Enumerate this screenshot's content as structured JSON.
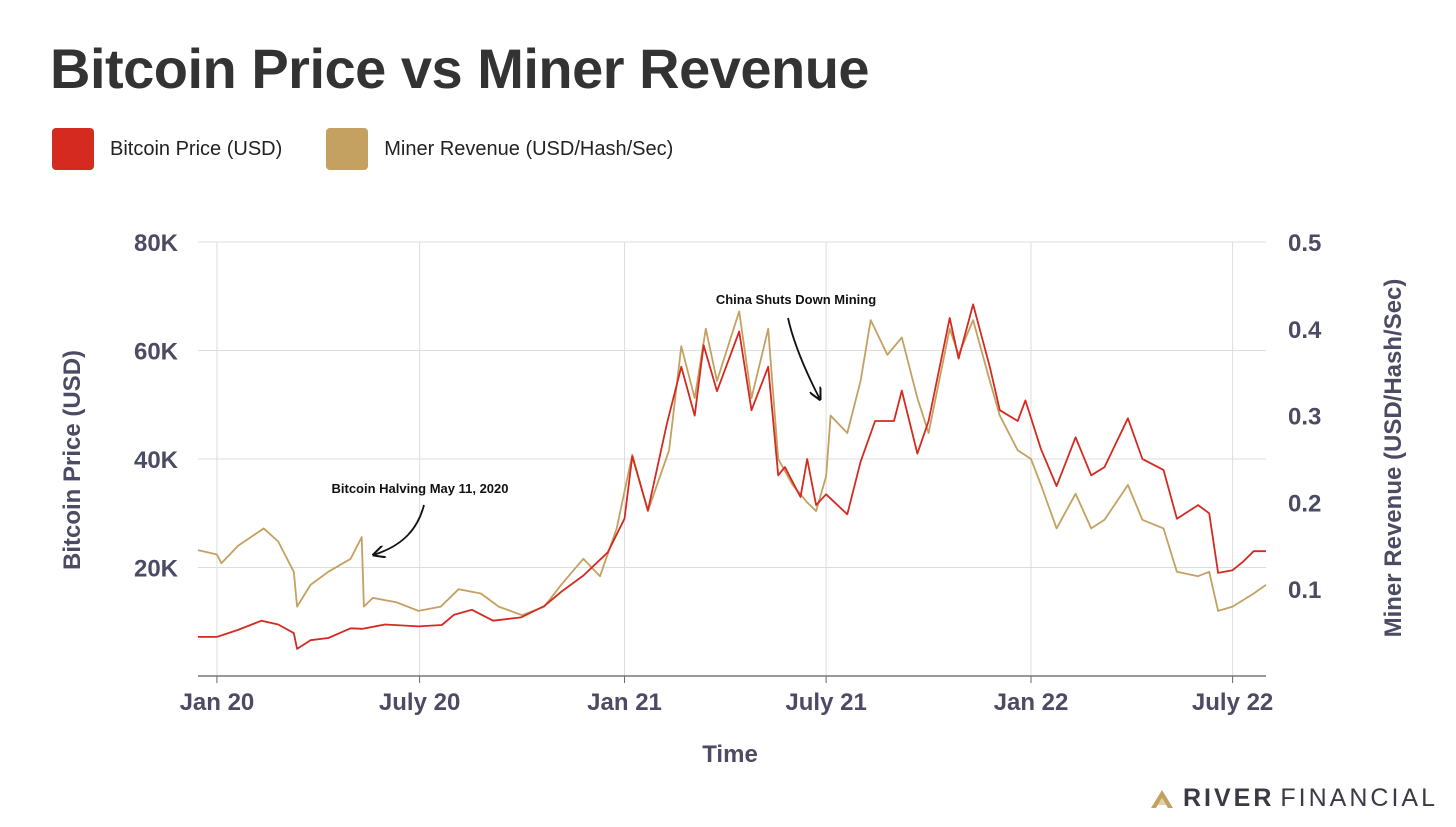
{
  "page": {
    "title": "Bitcoin Price vs Miner Revenue",
    "brand": {
      "name_bold": "RIVER",
      "name_light": "FINANCIAL",
      "logo_icon": "river-mountain-logo-icon"
    }
  },
  "colors": {
    "price": "#d42a20",
    "revenue": "#c4a061",
    "axis_text": "#4b4b63",
    "grid": "#dddddd"
  },
  "legend": [
    {
      "label": "Bitcoin Price (USD)",
      "color": "#d42a20"
    },
    {
      "label": "Miner Revenue (USD/Hash/Sec)",
      "color": "#c4a061"
    }
  ],
  "chart_data": {
    "type": "line",
    "title": "Bitcoin Price vs Miner Revenue",
    "xlabel": "Time",
    "ylabel_left": "Bitcoin Price (USD)",
    "ylabel_right": "Miner Revenue (USD/Hash/Sec)",
    "x_range": [
      "2019-12-15",
      "2022-07-31"
    ],
    "x_ticks": [
      {
        "date": "2020-01-01",
        "label": "Jan 20"
      },
      {
        "date": "2020-07-01",
        "label": "July 20"
      },
      {
        "date": "2021-01-01",
        "label": "Jan 21"
      },
      {
        "date": "2021-07-01",
        "label": "July 21"
      },
      {
        "date": "2022-01-01",
        "label": "Jan 22"
      },
      {
        "date": "2022-07-01",
        "label": "July 22"
      }
    ],
    "ylim_left": [
      0,
      80000
    ],
    "y_ticks_left": [
      {
        "value": 20000,
        "label": "20K"
      },
      {
        "value": 40000,
        "label": "40K"
      },
      {
        "value": 60000,
        "label": "60K"
      },
      {
        "value": 80000,
        "label": "80K"
      }
    ],
    "ylim_right": [
      0,
      0.5
    ],
    "y_ticks_right": [
      {
        "value": 0.1,
        "label": "0.1"
      },
      {
        "value": 0.2,
        "label": "0.2"
      },
      {
        "value": 0.3,
        "label": "0.3"
      },
      {
        "value": 0.4,
        "label": "0.4"
      },
      {
        "value": 0.5,
        "label": "0.5"
      }
    ],
    "grid": true,
    "legend_position": "top-left",
    "series": [
      {
        "name": "Bitcoin Price (USD)",
        "axis": "left",
        "color": "#d42a20",
        "points": [
          [
            "2019-12-15",
            7200
          ],
          [
            "2020-01-01",
            7200
          ],
          [
            "2020-01-20",
            8500
          ],
          [
            "2020-02-10",
            10200
          ],
          [
            "2020-02-25",
            9500
          ],
          [
            "2020-03-10",
            7900
          ],
          [
            "2020-03-13",
            5000
          ],
          [
            "2020-03-25",
            6600
          ],
          [
            "2020-04-10",
            7000
          ],
          [
            "2020-04-30",
            8800
          ],
          [
            "2020-05-11",
            8700
          ],
          [
            "2020-05-31",
            9500
          ],
          [
            "2020-06-30",
            9150
          ],
          [
            "2020-07-21",
            9400
          ],
          [
            "2020-08-01",
            11300
          ],
          [
            "2020-08-17",
            12200
          ],
          [
            "2020-09-05",
            10200
          ],
          [
            "2020-09-30",
            10800
          ],
          [
            "2020-10-21",
            12900
          ],
          [
            "2020-11-05",
            15500
          ],
          [
            "2020-11-25",
            18500
          ],
          [
            "2020-12-17",
            22800
          ],
          [
            "2021-01-01",
            29000
          ],
          [
            "2021-01-08",
            40500
          ],
          [
            "2021-01-22",
            30500
          ],
          [
            "2021-02-08",
            46500
          ],
          [
            "2021-02-21",
            57000
          ],
          [
            "2021-03-05",
            48000
          ],
          [
            "2021-03-13",
            61000
          ],
          [
            "2021-03-25",
            52500
          ],
          [
            "2021-04-14",
            63500
          ],
          [
            "2021-04-25",
            49000
          ],
          [
            "2021-05-10",
            57000
          ],
          [
            "2021-05-19",
            37000
          ],
          [
            "2021-05-25",
            38500
          ],
          [
            "2021-06-08",
            33000
          ],
          [
            "2021-06-14",
            40000
          ],
          [
            "2021-06-22",
            31500
          ],
          [
            "2021-07-01",
            33500
          ],
          [
            "2021-07-20",
            29800
          ],
          [
            "2021-08-01",
            39500
          ],
          [
            "2021-08-14",
            47000
          ],
          [
            "2021-08-31",
            47000
          ],
          [
            "2021-09-07",
            52600
          ],
          [
            "2021-09-21",
            41000
          ],
          [
            "2021-10-01",
            47000
          ],
          [
            "2021-10-20",
            66000
          ],
          [
            "2021-10-28",
            58500
          ],
          [
            "2021-11-10",
            68500
          ],
          [
            "2021-11-25",
            57000
          ],
          [
            "2021-12-04",
            49000
          ],
          [
            "2021-12-20",
            47000
          ],
          [
            "2021-12-27",
            50800
          ],
          [
            "2022-01-10",
            41800
          ],
          [
            "2022-01-24",
            35000
          ],
          [
            "2022-02-10",
            44000
          ],
          [
            "2022-02-24",
            37000
          ],
          [
            "2022-03-08",
            38500
          ],
          [
            "2022-03-29",
            47500
          ],
          [
            "2022-04-11",
            40000
          ],
          [
            "2022-04-30",
            38000
          ],
          [
            "2022-05-12",
            29000
          ],
          [
            "2022-05-31",
            31500
          ],
          [
            "2022-06-10",
            30000
          ],
          [
            "2022-06-18",
            19000
          ],
          [
            "2022-07-01",
            19500
          ],
          [
            "2022-07-10",
            21000
          ],
          [
            "2022-07-20",
            23000
          ],
          [
            "2022-07-31",
            23000
          ]
        ]
      },
      {
        "name": "Miner Revenue (USD/Hash/Sec)",
        "axis": "right",
        "color": "#c4a061",
        "points": [
          [
            "2019-12-15",
            0.145
          ],
          [
            "2020-01-01",
            0.14
          ],
          [
            "2020-01-05",
            0.13
          ],
          [
            "2020-01-20",
            0.15
          ],
          [
            "2020-02-12",
            0.17
          ],
          [
            "2020-02-25",
            0.155
          ],
          [
            "2020-03-10",
            0.12
          ],
          [
            "2020-03-13",
            0.08
          ],
          [
            "2020-03-25",
            0.105
          ],
          [
            "2020-04-10",
            0.12
          ],
          [
            "2020-04-30",
            0.135
          ],
          [
            "2020-05-10",
            0.16
          ],
          [
            "2020-05-12",
            0.08
          ],
          [
            "2020-05-20",
            0.09
          ],
          [
            "2020-06-10",
            0.085
          ],
          [
            "2020-06-30",
            0.075
          ],
          [
            "2020-07-20",
            0.08
          ],
          [
            "2020-08-05",
            0.1
          ],
          [
            "2020-08-25",
            0.095
          ],
          [
            "2020-09-10",
            0.08
          ],
          [
            "2020-10-01",
            0.07
          ],
          [
            "2020-10-21",
            0.08
          ],
          [
            "2020-11-05",
            0.105
          ],
          [
            "2020-11-25",
            0.135
          ],
          [
            "2020-12-10",
            0.115
          ],
          [
            "2020-12-25",
            0.17
          ],
          [
            "2021-01-08",
            0.255
          ],
          [
            "2021-01-22",
            0.19
          ],
          [
            "2021-02-10",
            0.26
          ],
          [
            "2021-02-21",
            0.38
          ],
          [
            "2021-03-05",
            0.32
          ],
          [
            "2021-03-15",
            0.4
          ],
          [
            "2021-03-25",
            0.34
          ],
          [
            "2021-04-14",
            0.42
          ],
          [
            "2021-04-25",
            0.32
          ],
          [
            "2021-05-10",
            0.4
          ],
          [
            "2021-05-19",
            0.25
          ],
          [
            "2021-06-01",
            0.22
          ],
          [
            "2021-06-14",
            0.2
          ],
          [
            "2021-06-22",
            0.19
          ],
          [
            "2021-07-01",
            0.23
          ],
          [
            "2021-07-05",
            0.3
          ],
          [
            "2021-07-20",
            0.28
          ],
          [
            "2021-08-01",
            0.34
          ],
          [
            "2021-08-10",
            0.41
          ],
          [
            "2021-08-25",
            0.37
          ],
          [
            "2021-09-07",
            0.39
          ],
          [
            "2021-09-21",
            0.32
          ],
          [
            "2021-10-01",
            0.28
          ],
          [
            "2021-10-20",
            0.4
          ],
          [
            "2021-10-28",
            0.37
          ],
          [
            "2021-11-10",
            0.41
          ],
          [
            "2021-11-25",
            0.34
          ],
          [
            "2021-12-04",
            0.3
          ],
          [
            "2021-12-20",
            0.26
          ],
          [
            "2022-01-01",
            0.25
          ],
          [
            "2022-01-10",
            0.22
          ],
          [
            "2022-01-24",
            0.17
          ],
          [
            "2022-02-10",
            0.21
          ],
          [
            "2022-02-24",
            0.17
          ],
          [
            "2022-03-08",
            0.18
          ],
          [
            "2022-03-29",
            0.22
          ],
          [
            "2022-04-11",
            0.18
          ],
          [
            "2022-04-30",
            0.17
          ],
          [
            "2022-05-12",
            0.12
          ],
          [
            "2022-05-31",
            0.115
          ],
          [
            "2022-06-10",
            0.12
          ],
          [
            "2022-06-18",
            0.075
          ],
          [
            "2022-07-01",
            0.08
          ],
          [
            "2022-07-20",
            0.095
          ],
          [
            "2022-07-31",
            0.105
          ]
        ]
      }
    ],
    "annotations": [
      {
        "text": "Bitcoin Halving May 11, 2020",
        "points_to": [
          "2020-05-11",
          0.14
        ]
      },
      {
        "text": "China Shuts Down Mining",
        "points_to": [
          "2021-06-25",
          0.32
        ]
      }
    ]
  }
}
